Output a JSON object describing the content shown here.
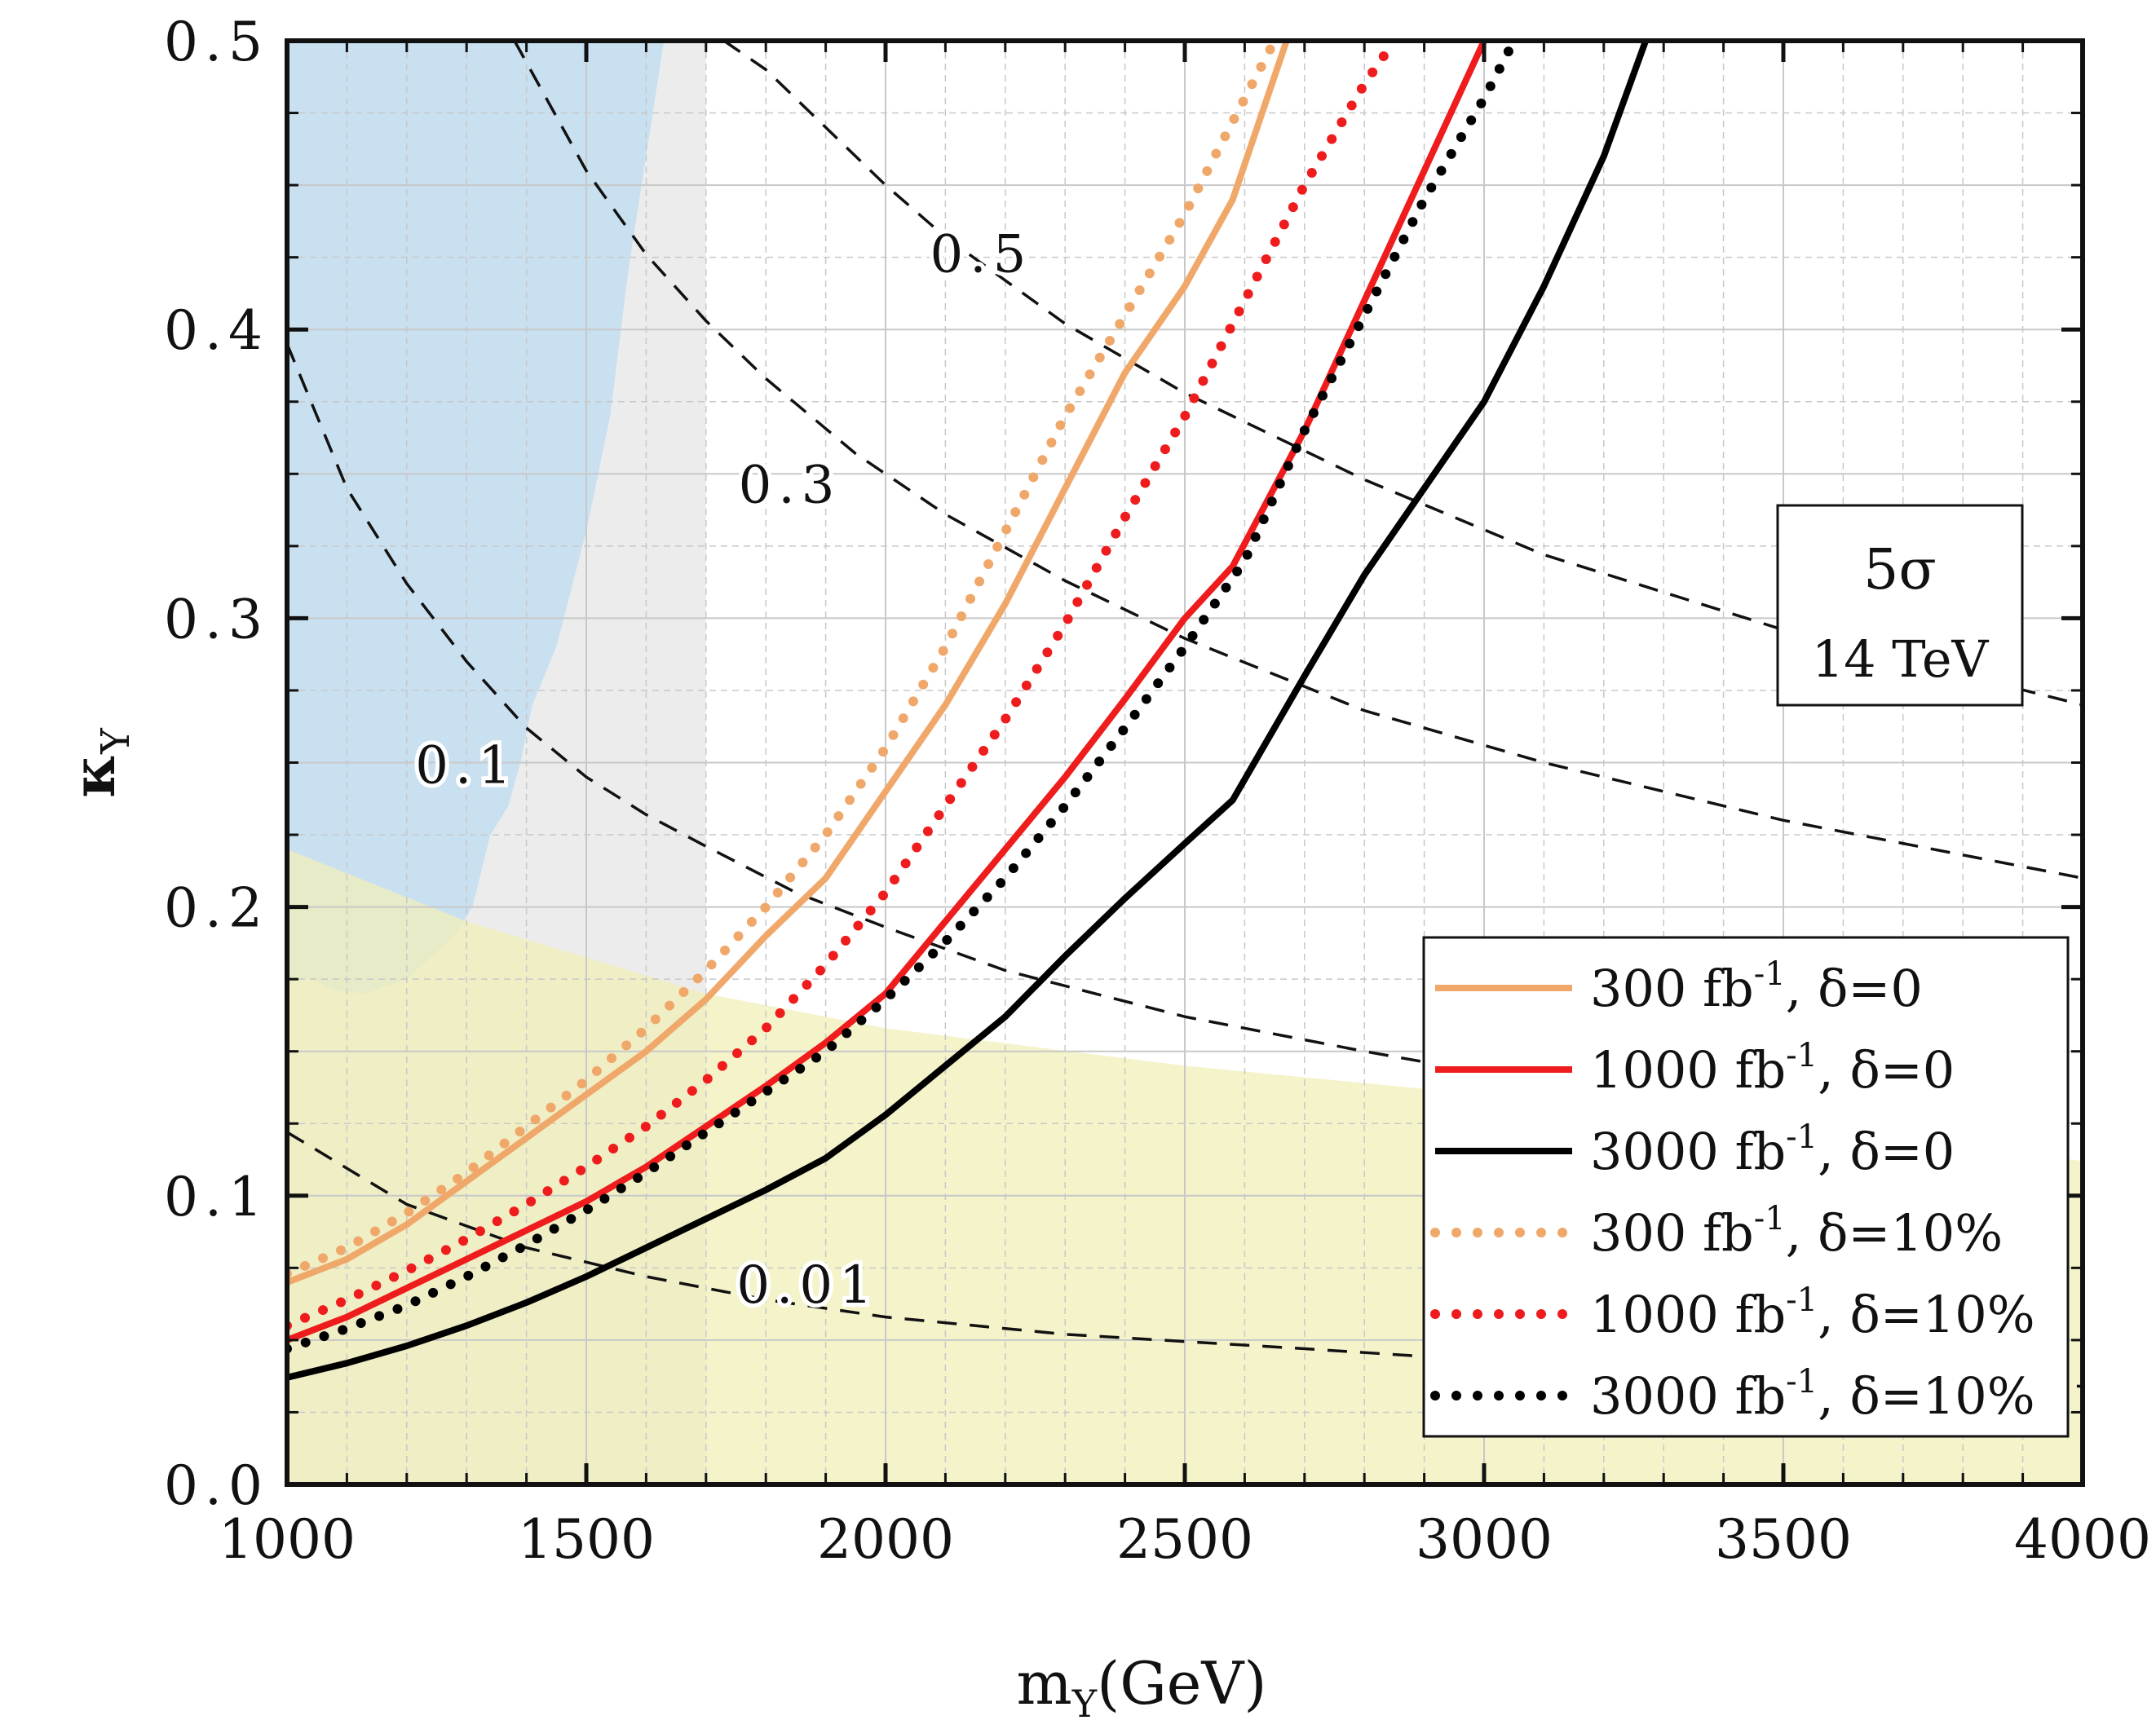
{
  "chart_data": {
    "type": "line",
    "xlabel": "m",
    "xlabel_sub": "Y",
    "xlabel_unit": "(GeV)",
    "ylabel": "κ",
    "ylabel_sub": "Y",
    "xlim": [
      1000,
      4000
    ],
    "ylim": [
      0.0,
      0.5
    ],
    "grid": true,
    "x_ticks": [
      1000,
      1500,
      2000,
      2500,
      3000,
      3500,
      4000
    ],
    "x_tick_labels": [
      "1000",
      "1500",
      "2000",
      "2500",
      "3000",
      "3500",
      "4000"
    ],
    "y_ticks": [
      0.0,
      0.1,
      0.2,
      0.3,
      0.4,
      0.5
    ],
    "y_tick_labels": [
      "0.0",
      "0.1",
      "0.2",
      "0.3",
      "0.4",
      "0.5"
    ],
    "info_box": {
      "line1": "5σ",
      "line2": "14 TeV"
    },
    "legend_position": "lower-right",
    "regions": [
      {
        "name": "blue-excluded-region",
        "color": "#b7d6ec",
        "points": [
          [
            1000,
            0.5
          ],
          [
            1000,
            0.175
          ],
          [
            1040,
            0.175
          ],
          [
            1080,
            0.171
          ],
          [
            1130,
            0.17
          ],
          [
            1200,
            0.175
          ],
          [
            1280,
            0.19
          ],
          [
            1310,
            0.2
          ],
          [
            1340,
            0.225
          ],
          [
            1370,
            0.235
          ],
          [
            1390,
            0.25
          ],
          [
            1410,
            0.27
          ],
          [
            1450,
            0.29
          ],
          [
            1500,
            0.33
          ],
          [
            1540,
            0.37
          ],
          [
            1570,
            0.42
          ],
          [
            1600,
            0.46
          ],
          [
            1630,
            0.5
          ]
        ]
      },
      {
        "name": "gray-excluded-region",
        "color": "#e6e6e6",
        "points": [
          [
            1630,
            0.5
          ],
          [
            1700,
            0.5
          ],
          [
            1700,
            0.0
          ],
          [
            1000,
            0.0
          ],
          [
            1000,
            0.175
          ],
          [
            1040,
            0.175
          ],
          [
            1080,
            0.171
          ],
          [
            1130,
            0.17
          ],
          [
            1200,
            0.175
          ],
          [
            1280,
            0.19
          ],
          [
            1310,
            0.2
          ],
          [
            1340,
            0.225
          ],
          [
            1370,
            0.235
          ],
          [
            1390,
            0.25
          ],
          [
            1410,
            0.27
          ],
          [
            1450,
            0.29
          ],
          [
            1500,
            0.33
          ],
          [
            1540,
            0.37
          ],
          [
            1570,
            0.42
          ],
          [
            1600,
            0.46
          ]
        ]
      },
      {
        "name": "yellow-region",
        "color": "#f2efb8",
        "points": [
          [
            1000,
            0.0
          ],
          [
            1000,
            0.22
          ],
          [
            1300,
            0.195
          ],
          [
            1700,
            0.17
          ],
          [
            2000,
            0.158
          ],
          [
            2500,
            0.145
          ],
          [
            3000,
            0.135
          ],
          [
            3500,
            0.125
          ],
          [
            4000,
            0.112
          ],
          [
            4000,
            0.0
          ]
        ]
      }
    ],
    "contours": [
      {
        "label": "0.01",
        "label_at": [
          1870,
          0.063
        ],
        "points": [
          [
            1000,
            0.122
          ],
          [
            1200,
            0.097
          ],
          [
            1400,
            0.082
          ],
          [
            1600,
            0.072
          ],
          [
            1800,
            0.064
          ],
          [
            2000,
            0.058
          ],
          [
            2300,
            0.052
          ],
          [
            2700,
            0.047
          ],
          [
            3000,
            0.043
          ],
          [
            3500,
            0.038
          ],
          [
            4000,
            0.034
          ]
        ]
      },
      {
        "label": "0.1",
        "label_at": [
          1300,
          0.243
        ],
        "points": [
          [
            1000,
            0.395
          ],
          [
            1100,
            0.345
          ],
          [
            1200,
            0.312
          ],
          [
            1300,
            0.285
          ],
          [
            1400,
            0.262
          ],
          [
            1500,
            0.245
          ],
          [
            1600,
            0.232
          ],
          [
            1700,
            0.221
          ],
          [
            1850,
            0.205
          ],
          [
            2000,
            0.193
          ],
          [
            2200,
            0.178
          ],
          [
            2500,
            0.162
          ],
          [
            2800,
            0.15
          ],
          [
            3100,
            0.139
          ],
          [
            3500,
            0.128
          ],
          [
            4000,
            0.118
          ]
        ]
      },
      {
        "label": "0.3",
        "label_at": [
          1840,
          0.34
        ],
        "points": [
          [
            1380,
            0.5
          ],
          [
            1500,
            0.455
          ],
          [
            1600,
            0.426
          ],
          [
            1700,
            0.403
          ],
          [
            1800,
            0.383
          ],
          [
            1950,
            0.357
          ],
          [
            2100,
            0.336
          ],
          [
            2300,
            0.313
          ],
          [
            2500,
            0.293
          ],
          [
            2800,
            0.268
          ],
          [
            3100,
            0.25
          ],
          [
            3500,
            0.23
          ],
          [
            4000,
            0.21
          ]
        ]
      },
      {
        "label": "0.5",
        "label_at": [
          2160,
          0.42
        ],
        "points": [
          [
            1730,
            0.5
          ],
          [
            1800,
            0.49
          ],
          [
            1900,
            0.47
          ],
          [
            2000,
            0.45
          ],
          [
            2100,
            0.432
          ],
          [
            2300,
            0.402
          ],
          [
            2500,
            0.378
          ],
          [
            2800,
            0.348
          ],
          [
            3100,
            0.322
          ],
          [
            3500,
            0.296
          ],
          [
            4000,
            0.27
          ]
        ]
      }
    ],
    "series": [
      {
        "name": "300 fb-1, δ=0",
        "legend_label": "300  fb",
        "legend_sup": "-1",
        "legend_tail": ",  δ=0",
        "color": "#f0a86a",
        "dash": "solid",
        "points": [
          [
            1000,
            0.07
          ],
          [
            1100,
            0.078
          ],
          [
            1200,
            0.09
          ],
          [
            1300,
            0.105
          ],
          [
            1400,
            0.12
          ],
          [
            1500,
            0.135
          ],
          [
            1600,
            0.15
          ],
          [
            1700,
            0.168
          ],
          [
            1800,
            0.19
          ],
          [
            1900,
            0.21
          ],
          [
            2000,
            0.24
          ],
          [
            2100,
            0.27
          ],
          [
            2200,
            0.305
          ],
          [
            2300,
            0.345
          ],
          [
            2400,
            0.385
          ],
          [
            2500,
            0.415
          ],
          [
            2580,
            0.445
          ],
          [
            2670,
            0.5
          ]
        ]
      },
      {
        "name": "1000 fb-1, δ=0",
        "legend_label": "1000  fb",
        "legend_sup": "-1",
        "legend_tail": ",  δ=0",
        "color": "#ee1c1c",
        "dash": "solid",
        "points": [
          [
            1000,
            0.05
          ],
          [
            1100,
            0.058
          ],
          [
            1200,
            0.068
          ],
          [
            1300,
            0.078
          ],
          [
            1400,
            0.088
          ],
          [
            1500,
            0.098
          ],
          [
            1600,
            0.11
          ],
          [
            1700,
            0.124
          ],
          [
            1800,
            0.138
          ],
          [
            1900,
            0.153
          ],
          [
            2000,
            0.17
          ],
          [
            2100,
            0.195
          ],
          [
            2200,
            0.22
          ],
          [
            2300,
            0.245
          ],
          [
            2400,
            0.272
          ],
          [
            2500,
            0.3
          ],
          [
            2580,
            0.318
          ],
          [
            2700,
            0.365
          ],
          [
            2800,
            0.41
          ],
          [
            2900,
            0.455
          ],
          [
            3000,
            0.5
          ]
        ]
      },
      {
        "name": "3000 fb-1, δ=0",
        "legend_label": "3000  fb",
        "legend_sup": "-1",
        "legend_tail": ",  δ=0",
        "color": "#000000",
        "dash": "solid",
        "points": [
          [
            1000,
            0.037
          ],
          [
            1100,
            0.042
          ],
          [
            1200,
            0.048
          ],
          [
            1300,
            0.055
          ],
          [
            1400,
            0.063
          ],
          [
            1500,
            0.072
          ],
          [
            1600,
            0.082
          ],
          [
            1700,
            0.092
          ],
          [
            1800,
            0.102
          ],
          [
            1900,
            0.113
          ],
          [
            2000,
            0.128
          ],
          [
            2100,
            0.145
          ],
          [
            2200,
            0.162
          ],
          [
            2300,
            0.183
          ],
          [
            2400,
            0.203
          ],
          [
            2500,
            0.222
          ],
          [
            2580,
            0.237
          ],
          [
            2700,
            0.28
          ],
          [
            2800,
            0.315
          ],
          [
            2900,
            0.345
          ],
          [
            3000,
            0.375
          ],
          [
            3100,
            0.415
          ],
          [
            3200,
            0.46
          ],
          [
            3270,
            0.5
          ]
        ]
      },
      {
        "name": "300 fb-1, δ=10%",
        "legend_label": "300  fb",
        "legend_sup": "-1",
        "legend_tail": ",  δ=10%",
        "color": "#f0a86a",
        "dash": "dotted",
        "points": [
          [
            1000,
            0.073
          ],
          [
            1100,
            0.082
          ],
          [
            1200,
            0.094
          ],
          [
            1300,
            0.108
          ],
          [
            1400,
            0.124
          ],
          [
            1500,
            0.14
          ],
          [
            1600,
            0.158
          ],
          [
            1700,
            0.178
          ],
          [
            1800,
            0.2
          ],
          [
            1900,
            0.225
          ],
          [
            2000,
            0.255
          ],
          [
            2100,
            0.29
          ],
          [
            2200,
            0.33
          ],
          [
            2300,
            0.37
          ],
          [
            2400,
            0.405
          ],
          [
            2500,
            0.44
          ],
          [
            2600,
            0.48
          ],
          [
            2650,
            0.5
          ]
        ]
      },
      {
        "name": "1000 fb-1, δ=10%",
        "legend_label": "1000  fb",
        "legend_sup": "-1",
        "legend_tail": ",  δ=10%",
        "color": "#ee1c1c",
        "dash": "dotted",
        "points": [
          [
            1000,
            0.055
          ],
          [
            1100,
            0.064
          ],
          [
            1200,
            0.074
          ],
          [
            1300,
            0.085
          ],
          [
            1400,
            0.097
          ],
          [
            1500,
            0.11
          ],
          [
            1600,
            0.124
          ],
          [
            1700,
            0.14
          ],
          [
            1800,
            0.158
          ],
          [
            1900,
            0.18
          ],
          [
            2000,
            0.205
          ],
          [
            2100,
            0.235
          ],
          [
            2200,
            0.265
          ],
          [
            2300,
            0.298
          ],
          [
            2400,
            0.335
          ],
          [
            2500,
            0.37
          ],
          [
            2600,
            0.41
          ],
          [
            2700,
            0.45
          ],
          [
            2800,
            0.485
          ],
          [
            2850,
            0.5
          ]
        ]
      },
      {
        "name": "3000 fb-1, δ=10%",
        "legend_label": "3000  fb",
        "legend_sup": "-1",
        "legend_tail": ",  δ=10%",
        "color": "#000000",
        "dash": "dotted",
        "points": [
          [
            1000,
            0.047
          ],
          [
            1100,
            0.054
          ],
          [
            1200,
            0.062
          ],
          [
            1300,
            0.072
          ],
          [
            1400,
            0.083
          ],
          [
            1500,
            0.095
          ],
          [
            1600,
            0.108
          ],
          [
            1700,
            0.122
          ],
          [
            1800,
            0.136
          ],
          [
            1900,
            0.15
          ],
          [
            2000,
            0.168
          ],
          [
            2100,
            0.188
          ],
          [
            2200,
            0.21
          ],
          [
            2300,
            0.235
          ],
          [
            2400,
            0.262
          ],
          [
            2500,
            0.29
          ],
          [
            2600,
            0.32
          ],
          [
            2700,
            0.365
          ],
          [
            2800,
            0.405
          ],
          [
            2900,
            0.445
          ],
          [
            3000,
            0.48
          ],
          [
            3050,
            0.5
          ]
        ]
      }
    ]
  }
}
